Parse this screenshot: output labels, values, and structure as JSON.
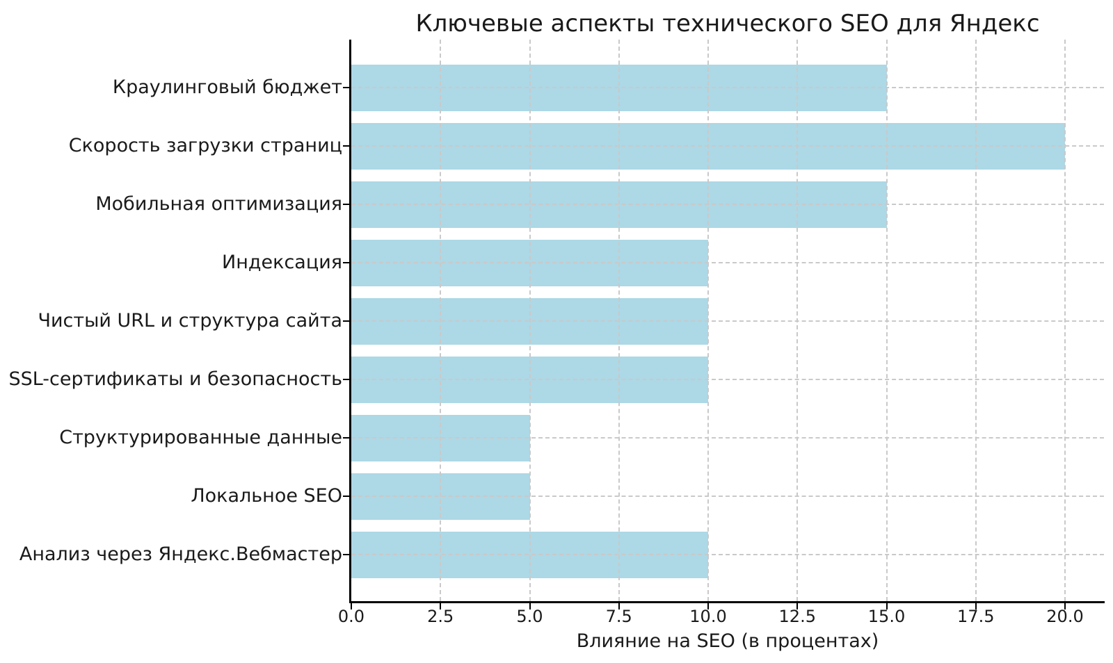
{
  "title": "Ключевые аспекты технического SEO для Яндекс",
  "x_axis": {
    "label": "Влияние на SEO (в процентах)",
    "tick_labels": [
      "0.0",
      "2.5",
      "5.0",
      "7.5",
      "10.0",
      "12.5",
      "15.0",
      "17.5",
      "20.0"
    ]
  },
  "colors": {
    "bar": "#ADD8E6",
    "grid": "#c9c9c9",
    "spine": "#000000",
    "text": "#1a1a1a",
    "background": "#ffffff"
  },
  "chart_data": {
    "type": "bar",
    "orientation": "horizontal",
    "title": "Ключевые аспекты технического SEO для Яндекс",
    "xlabel": "Влияние на SEO (в процентах)",
    "ylabel": "",
    "categories": [
      "Краулинговый бюджет",
      "Скорость загрузки страниц",
      "Мобильная оптимизация",
      "Индексация",
      "Чистый URL и структура сайта",
      "SSL-сертификаты и безопасность",
      "Структурированные данные",
      "Локальное SEO",
      "Анализ через Яндекс.Вебмастер"
    ],
    "values": [
      15,
      20,
      15,
      10,
      10,
      10,
      5,
      5,
      10
    ],
    "x_ticks": [
      0,
      2.5,
      5,
      7.5,
      10,
      12.5,
      15,
      17.5,
      20
    ],
    "xlim": [
      0,
      21.1
    ],
    "grid": true,
    "grid_style": "dashed",
    "legend": false,
    "bar_color": "#ADD8E6"
  }
}
